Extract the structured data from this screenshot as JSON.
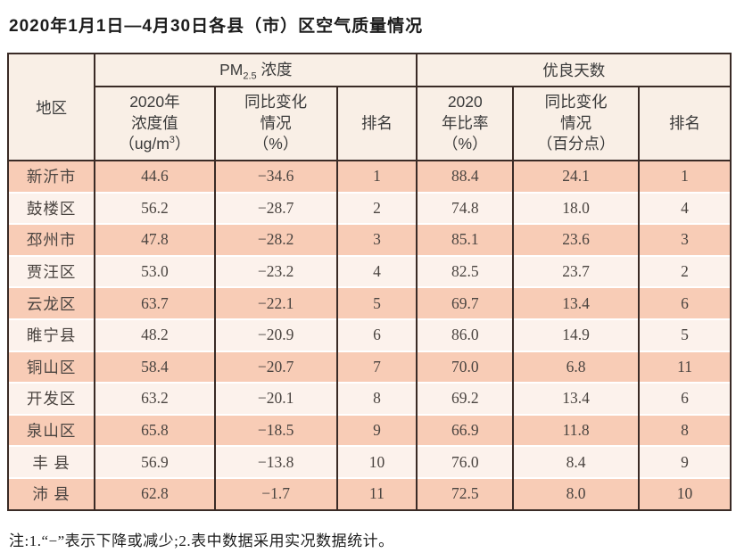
{
  "page": {
    "title": "2020年1月1日—4月30日各县（市）区空气质量情况",
    "footnote": "注:1.“−”表示下降或减少;2.表中数据采用实况数据统计。"
  },
  "table": {
    "corner_header": "地区",
    "group_pm": {
      "prefix": "PM",
      "subscript": "2.5",
      "suffix": " 浓度"
    },
    "group_good": "优良天数",
    "subheaders": {
      "pm_value": {
        "lines": "2020年\n浓度值",
        "unit_prefix": "（ug/m",
        "unit_sup": "3",
        "unit_suffix": "）"
      },
      "pm_change": "同比变化\n情况\n（%）",
      "pm_rank": "排名",
      "good_ratio": "2020\n年比率\n（%）",
      "good_change": "同比变化\n情况\n（百分点）",
      "good_rank": "排名"
    },
    "rows": [
      {
        "region": "新沂市",
        "pm_value": "44.6",
        "pm_change": "−34.6",
        "pm_rank": "1",
        "good_ratio": "88.4",
        "good_change": "24.1",
        "good_rank": "1"
      },
      {
        "region": "鼓楼区",
        "pm_value": "56.2",
        "pm_change": "−28.7",
        "pm_rank": "2",
        "good_ratio": "74.8",
        "good_change": "18.0",
        "good_rank": "4"
      },
      {
        "region": "邳州市",
        "pm_value": "47.8",
        "pm_change": "−28.2",
        "pm_rank": "3",
        "good_ratio": "85.1",
        "good_change": "23.6",
        "good_rank": "3"
      },
      {
        "region": "贾汪区",
        "pm_value": "53.0",
        "pm_change": "−23.2",
        "pm_rank": "4",
        "good_ratio": "82.5",
        "good_change": "23.7",
        "good_rank": "2"
      },
      {
        "region": "云龙区",
        "pm_value": "63.7",
        "pm_change": "−22.1",
        "pm_rank": "5",
        "good_ratio": "69.7",
        "good_change": "13.4",
        "good_rank": "6"
      },
      {
        "region": "睢宁县",
        "pm_value": "48.2",
        "pm_change": "−20.9",
        "pm_rank": "6",
        "good_ratio": "86.0",
        "good_change": "14.9",
        "good_rank": "5"
      },
      {
        "region": "铜山区",
        "pm_value": "58.4",
        "pm_change": "−20.7",
        "pm_rank": "7",
        "good_ratio": "70.0",
        "good_change": "6.8",
        "good_rank": "11"
      },
      {
        "region": "开发区",
        "pm_value": "63.2",
        "pm_change": "−20.1",
        "pm_rank": "8",
        "good_ratio": "69.2",
        "good_change": "13.4",
        "good_rank": "6"
      },
      {
        "region": "泉山区",
        "pm_value": "65.8",
        "pm_change": "−18.5",
        "pm_rank": "9",
        "good_ratio": "66.9",
        "good_change": "11.8",
        "good_rank": "8"
      },
      {
        "region": "丰 县",
        "pm_value": "56.9",
        "pm_change": "−13.8",
        "pm_rank": "10",
        "good_ratio": "76.0",
        "good_change": "8.4",
        "good_rank": "9"
      },
      {
        "region": "沛 县",
        "pm_value": "62.8",
        "pm_change": "−1.7",
        "pm_rank": "11",
        "good_ratio": "72.5",
        "good_change": "8.0",
        "good_rank": "10"
      }
    ]
  },
  "colors": {
    "row_salmon": "#f8ccb6",
    "row_light": "#fcf2ec",
    "header_bg": "#f9efe6",
    "border": "#3a2b26"
  }
}
